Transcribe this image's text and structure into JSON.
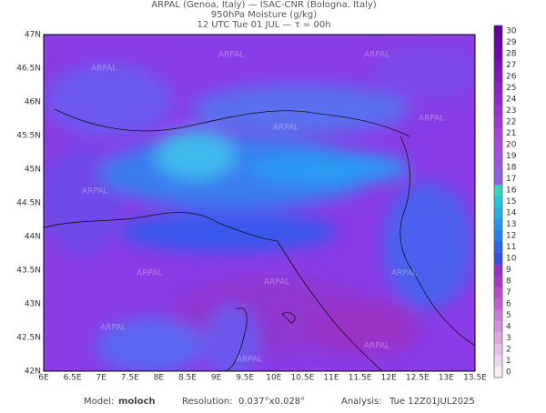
{
  "header": {
    "line1": "ARPAL (Genoa, Italy)  —  ISAC-CNR (Bologna, Italy)",
    "line2": "950hPa Moisture (g/kg)",
    "line3": "12 UTC Tue 01 JUL  —  τ = 00h"
  },
  "map": {
    "lat_labels": [
      "47N",
      "46.5N",
      "46N",
      "45.5N",
      "45N",
      "44.5N",
      "44N",
      "43.5N",
      "43N",
      "42.5N",
      "42N"
    ],
    "lon_labels": [
      "6E",
      "6.5E",
      "7E",
      "7.5E",
      "8E",
      "8.5E",
      "9E",
      "9.5E",
      "10E",
      "10.5E",
      "11E",
      "11.5E",
      "12E",
      "12.5E",
      "13E",
      "13.5E"
    ],
    "watermark": "ARPAL"
  },
  "colorbar": {
    "ticks": [
      0,
      1,
      2,
      3,
      4,
      5,
      6,
      7,
      8,
      9,
      10,
      11,
      12,
      13,
      14,
      15,
      16,
      17,
      18,
      19,
      20,
      21,
      22,
      23,
      24,
      25,
      26,
      27,
      28,
      29,
      30
    ],
    "colors": [
      "#f4f0f4",
      "#ecd8ec",
      "#e4c0e4",
      "#dca8dc",
      "#d490d8",
      "#cc78d4",
      "#c060d0",
      "#b848cc",
      "#a838c8",
      "#9830c8",
      "#3050e8",
      "#2868f0",
      "#2080f4",
      "#2098f0",
      "#20b0e8",
      "#20c8d8",
      "#30d8b8",
      "#9060e0",
      "#9858e0",
      "#a050e0",
      "#a848dc",
      "#a840d8",
      "#a038d4",
      "#9830d0",
      "#9028cc",
      "#8820c4",
      "#8018bc",
      "#7810b4",
      "#7008ac",
      "#6800a4",
      "#60009c"
    ]
  },
  "footer": {
    "model_label": "Model:",
    "model": "moloch",
    "res_label": "Resolution:",
    "res": "0.037°x0.028°",
    "analysis_label": "Analysis:",
    "analysis": "Tue 12Z01JUL2025"
  }
}
